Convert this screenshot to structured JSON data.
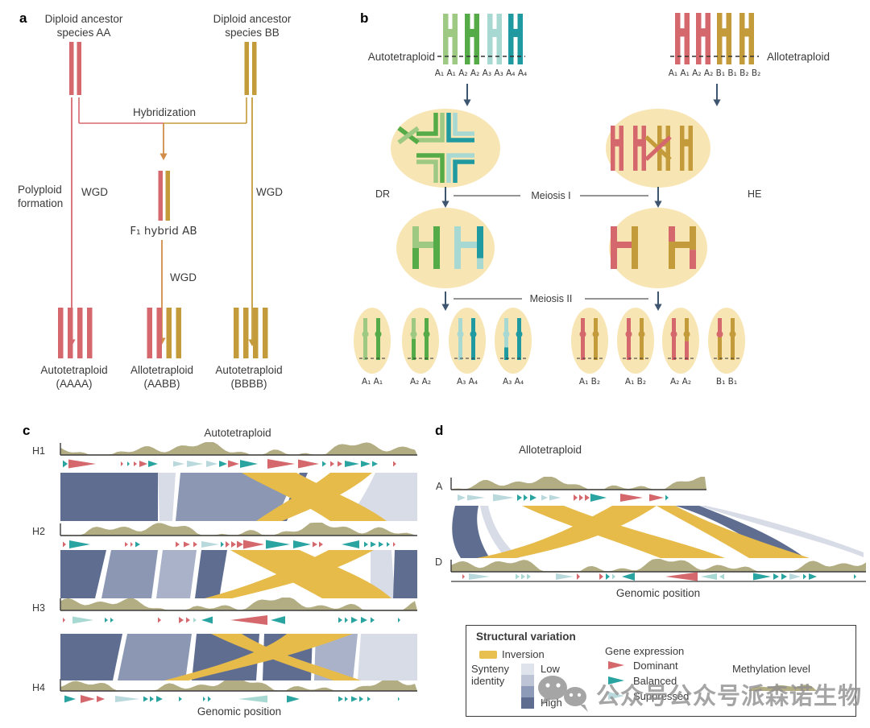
{
  "palette": {
    "red": "#d5686d",
    "gold": "#c49b3b",
    "orange": "#d08c48",
    "pale_green": "#9ec983",
    "green": "#55ab47",
    "pale_teal": "#a8d8d2",
    "teal": "#1f9aa0",
    "cell_bg": "#f8e5b4",
    "slate_arrow": "#3e5570",
    "synteny_dark": "#5e6d90",
    "synteny_mid": "#8b97b3",
    "synteny_mid2": "#a9b2c8",
    "synteny_light": "#d8dce7",
    "inversion_yellow": "#e7bb4a",
    "olive": "#b3ad83",
    "gene_red": "#d5686d",
    "gene_teal": "#2aa4a1",
    "gene_light": "#b9d9dd",
    "axis": "#3c3c3c"
  },
  "panel_a": {
    "tag": "a",
    "ancestor_a": "Diploid ancestor species AA",
    "ancestor_b": "Diploid ancestor species BB",
    "hybridization": "Hybridization",
    "polyploid_formation": "Polyploid formation",
    "wgd_left": "WGD",
    "wgd_mid": "WGD",
    "wgd_right": "WGD",
    "f1_hybrid": "F₁ hybrid AB",
    "autotetraploid_a": "Autotetraploid (AAAA)",
    "allotetraploid": "Allotetraploid (AABB)",
    "autotetraploid_b": "Autotetraploid (BBBB)"
  },
  "panel_b": {
    "tag": "b",
    "autotetraploid_label": "Autotetraploid",
    "allotetraploid_label": "Allotetraploid",
    "auto_chromosomes": "A₁ A₁ A₂ A₂ A₃ A₃ A₄ A₄",
    "allo_chromosomes": "A₁ A₁ A₂ A₂ B₁ B₁ B₂ B₂",
    "dr": "DR",
    "he": "HE",
    "meiosis_1": "Meiosis I",
    "meiosis_2": "Meiosis II",
    "gametes": [
      "A₁ A₁",
      "A₂ A₂",
      "A₃ A₄",
      "A₃ A₄",
      "A₁ B₂",
      "A₁ B₂",
      "A₂ A₂",
      "B₁ B₁"
    ]
  },
  "panel_c": {
    "tag": "c",
    "title": "Autotetraploid",
    "tracks": [
      "H1",
      "H2",
      "H3",
      "H4"
    ],
    "xlabel": "Genomic position"
  },
  "panel_d": {
    "tag": "d",
    "title": "Allotetraploid",
    "tracks": [
      "A",
      "D"
    ],
    "xlabel": "Genomic position"
  },
  "legend": {
    "structural_variation_title": "Structural variation",
    "inversion": "Inversion",
    "synteny_identity": "Synteny identity",
    "low": "Low",
    "high": "High",
    "gene_expression_title": "Gene expression",
    "dominant": "Dominant",
    "balanced": "Balanced",
    "suppressed": "Suppressed",
    "methylation": "Methylation level"
  },
  "watermark": {
    "text": "公众号公众号派森诺生物"
  }
}
